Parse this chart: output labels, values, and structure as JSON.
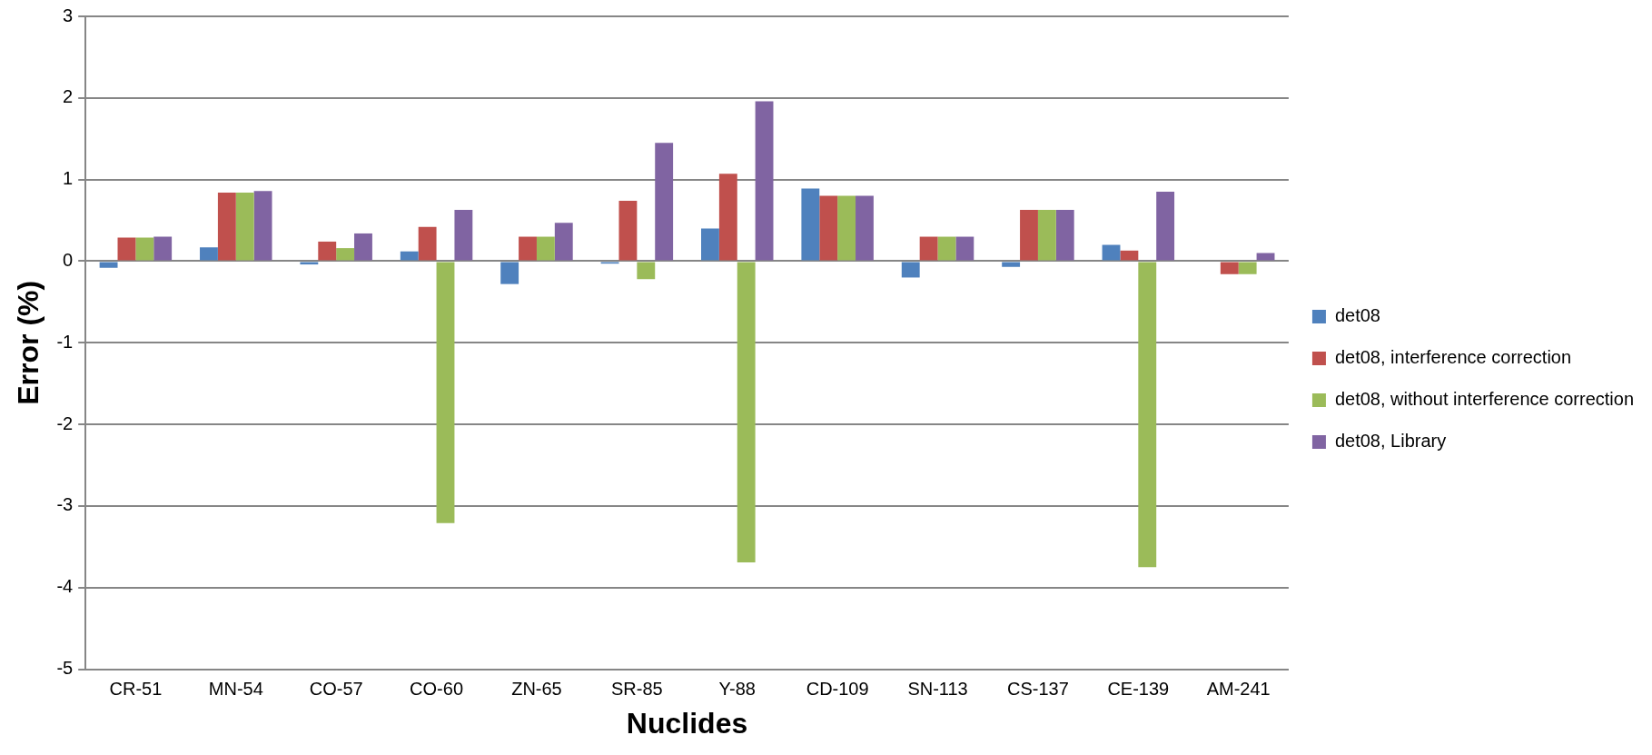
{
  "chart_data": {
    "type": "bar",
    "xlabel": "Nuclides",
    "ylabel": "Error (%)",
    "categories": [
      "CR-51",
      "MN-54",
      "CO-57",
      "CO-60",
      "ZN-65",
      "SR-85",
      "Y-88",
      "CD-109",
      "SN-113",
      "CS-137",
      "CE-139",
      "AM-241"
    ],
    "series": [
      {
        "name": "det08",
        "color": "#4f81bd",
        "values": [
          -0.08,
          0.17,
          -0.04,
          0.12,
          -0.28,
          -0.03,
          0.4,
          0.89,
          -0.2,
          -0.07,
          0.2,
          0
        ]
      },
      {
        "name": "det08, interference correction",
        "color": "#c0504d",
        "values": [
          0.29,
          0.84,
          0.24,
          0.42,
          0.3,
          0.74,
          1.07,
          0.8,
          0.3,
          0.63,
          0.13,
          -0.16
        ]
      },
      {
        "name": "det08, without interference correction",
        "color": "#9bbb59",
        "values": [
          0.29,
          0.84,
          0.16,
          -3.21,
          0.3,
          -0.22,
          -3.69,
          0.8,
          0.3,
          0.63,
          -3.75,
          -0.16
        ]
      },
      {
        "name": "det08, Library",
        "color": "#8064a2",
        "values": [
          0.3,
          0.86,
          0.34,
          0.63,
          0.47,
          1.45,
          1.96,
          0.8,
          0.3,
          0.63,
          0.85,
          0.1
        ]
      }
    ],
    "ylim": [
      -5,
      3
    ],
    "yticks": [
      -5,
      -4,
      -3,
      -2,
      -1,
      0,
      1,
      2,
      3
    ],
    "grid": "y",
    "legend": "right"
  }
}
